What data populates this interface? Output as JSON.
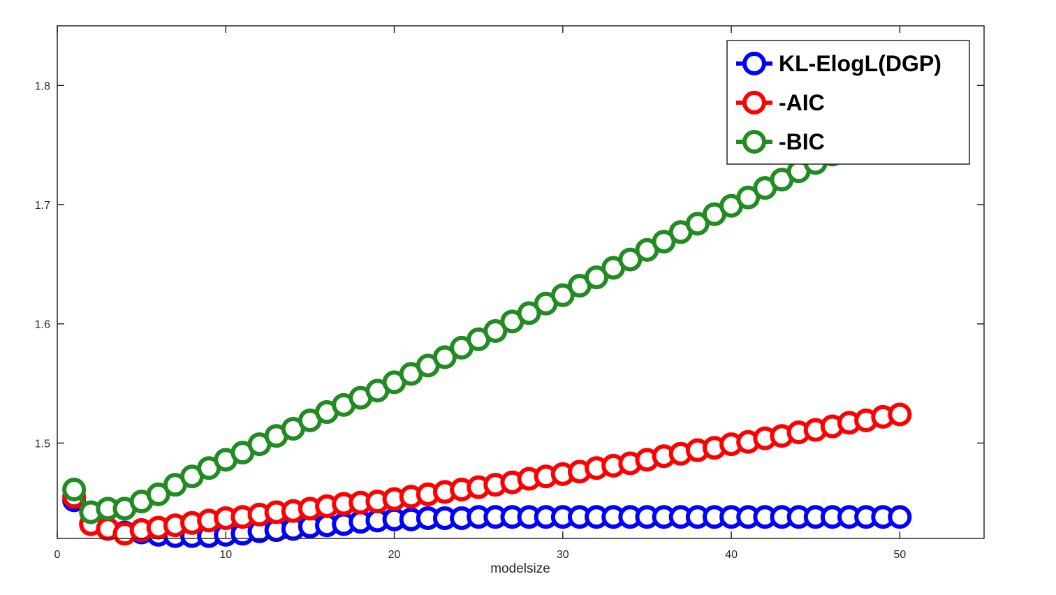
{
  "chart_data": {
    "type": "line",
    "title": "",
    "xlabel": "modelsize",
    "ylabel": "",
    "xlim": [
      0,
      55
    ],
    "ylim": [
      1.42,
      1.85
    ],
    "xticks": [
      0,
      10,
      20,
      30,
      40,
      50
    ],
    "yticks": [
      1.5,
      1.6,
      1.7,
      1.8
    ],
    "xtick_labels": [
      "0",
      "10",
      "20",
      "30",
      "40",
      "50"
    ],
    "ytick_labels": [
      "1.5",
      "1.6",
      "1.7",
      "1.8"
    ],
    "grid": false,
    "legend_position": "top-right",
    "marker": "circle",
    "series": [
      {
        "name": "KL-ElogL(DGP)",
        "color": "#0000ff",
        "x": [
          1,
          2,
          3,
          4,
          5,
          6,
          7,
          8,
          9,
          10,
          11,
          12,
          13,
          14,
          15,
          16,
          17,
          18,
          19,
          20,
          21,
          22,
          23,
          24,
          25,
          26,
          27,
          28,
          29,
          30,
          31,
          32,
          33,
          34,
          35,
          36,
          37,
          38,
          39,
          40,
          41,
          42,
          43,
          44,
          45,
          46,
          47,
          48,
          49,
          50
        ],
        "values": [
          1.452,
          1.432,
          1.428,
          1.425,
          1.425,
          1.423,
          1.422,
          1.422,
          1.422,
          1.423,
          1.424,
          1.426,
          1.427,
          1.428,
          1.43,
          1.431,
          1.432,
          1.434,
          1.435,
          1.436,
          1.436,
          1.437,
          1.437,
          1.437,
          1.438,
          1.438,
          1.438,
          1.438,
          1.438,
          1.438,
          1.438,
          1.438,
          1.438,
          1.438,
          1.438,
          1.438,
          1.438,
          1.438,
          1.438,
          1.438,
          1.438,
          1.438,
          1.438,
          1.438,
          1.438,
          1.438,
          1.438,
          1.438,
          1.438,
          1.438
        ]
      },
      {
        "name": "-AIC",
        "color": "#ff0000",
        "x": [
          1,
          2,
          3,
          4,
          5,
          6,
          7,
          8,
          9,
          10,
          11,
          12,
          13,
          14,
          15,
          16,
          17,
          18,
          19,
          20,
          21,
          22,
          23,
          24,
          25,
          26,
          27,
          28,
          29,
          30,
          31,
          32,
          33,
          34,
          35,
          36,
          37,
          38,
          39,
          40,
          41,
          42,
          43,
          44,
          45,
          46,
          47,
          48,
          49,
          50
        ],
        "values": [
          1.455,
          1.432,
          1.428,
          1.424,
          1.427,
          1.429,
          1.431,
          1.433,
          1.435,
          1.437,
          1.438,
          1.44,
          1.442,
          1.443,
          1.445,
          1.447,
          1.449,
          1.45,
          1.451,
          1.453,
          1.455,
          1.457,
          1.459,
          1.461,
          1.463,
          1.465,
          1.467,
          1.47,
          1.472,
          1.474,
          1.476,
          1.479,
          1.481,
          1.483,
          1.486,
          1.489,
          1.491,
          1.494,
          1.496,
          1.499,
          1.501,
          1.504,
          1.506,
          1.509,
          1.511,
          1.514,
          1.517,
          1.519,
          1.522,
          1.524
        ]
      },
      {
        "name": "-BIC",
        "color": "#228b22",
        "x": [
          1,
          2,
          3,
          4,
          5,
          6,
          7,
          8,
          9,
          10,
          11,
          12,
          13,
          14,
          15,
          16,
          17,
          18,
          19,
          20,
          21,
          22,
          23,
          24,
          25,
          26,
          27,
          28,
          29,
          30,
          31,
          32,
          33,
          34,
          35,
          36,
          37,
          38,
          39,
          40,
          41,
          42,
          43,
          44,
          45,
          46,
          47,
          48,
          49,
          50
        ],
        "values": [
          1.461,
          1.442,
          1.445,
          1.445,
          1.451,
          1.457,
          1.465,
          1.472,
          1.479,
          1.486,
          1.492,
          1.499,
          1.506,
          1.512,
          1.519,
          1.526,
          1.532,
          1.538,
          1.544,
          1.551,
          1.558,
          1.565,
          1.572,
          1.58,
          1.587,
          1.594,
          1.602,
          1.609,
          1.617,
          1.624,
          1.632,
          1.639,
          1.647,
          1.654,
          1.662,
          1.669,
          1.677,
          1.684,
          1.692,
          1.699,
          1.706,
          1.714,
          1.721,
          1.728,
          1.735,
          1.742,
          1.749,
          1.756,
          1.763,
          1.77
        ]
      }
    ]
  }
}
